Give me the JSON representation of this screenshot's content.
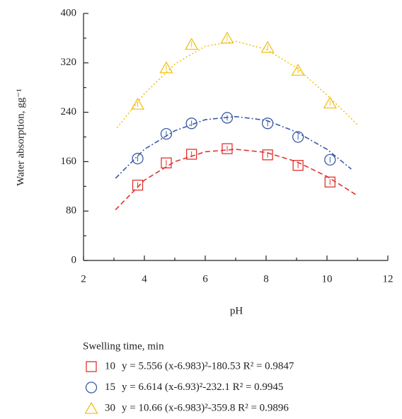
{
  "chart_data": {
    "type": "scatter",
    "x_label": "pH",
    "y_label": "Water absorption, gg⁻¹",
    "legend_title": "Swelling time, min",
    "x": [
      3.78,
      4.72,
      5.55,
      6.72,
      8.05,
      9.05,
      10.1
    ],
    "series": [
      {
        "name": "10",
        "fit": "y = 5.556 (x-6.983)²-180.53 R² = 0.9847",
        "color": "#e0332f",
        "marker": "square",
        "dash": "dashed",
        "values": [
          122,
          158,
          172,
          181,
          171,
          154,
          127
        ],
        "fit_x": [
          3.05,
          4,
          5,
          6,
          7,
          8,
          9,
          10,
          11
        ],
        "fit_values": [
          82,
          130,
          160,
          176,
          180,
          175,
          160,
          136,
          105
        ]
      },
      {
        "name": "15",
        "fit": "y = 6.614 (x-6.93)²-232.1 R² = 0.9945",
        "color": "#3a5ba8",
        "marker": "circle",
        "dash": "dashdot",
        "values": [
          165,
          205,
          222,
          231,
          222,
          200,
          163
        ],
        "fit_x": [
          3.05,
          4,
          5,
          6,
          7,
          8,
          9,
          10,
          10.8
        ],
        "fit_values": [
          133,
          180,
          210,
          228,
          233,
          227,
          208,
          180,
          148
        ]
      },
      {
        "name": "30",
        "fit": "y = 10.66 (x-6.983)²-359.8 R² = 0.9896",
        "color": "#f2c21b",
        "marker": "triangle",
        "dash": "dotted",
        "values": [
          253,
          312,
          350,
          360,
          345,
          308,
          255
        ],
        "fit_x": [
          3.1,
          4,
          5,
          6,
          7,
          8,
          9,
          10,
          11
        ],
        "fit_values": [
          215,
          270,
          318,
          347,
          355,
          342,
          312,
          268,
          220
        ]
      }
    ],
    "xlim": [
      2,
      12
    ],
    "xticks": [
      2,
      4,
      6,
      8,
      10,
      12
    ],
    "ylim": [
      0,
      400
    ],
    "yticks": [
      0,
      80,
      160,
      240,
      320,
      400
    ]
  }
}
